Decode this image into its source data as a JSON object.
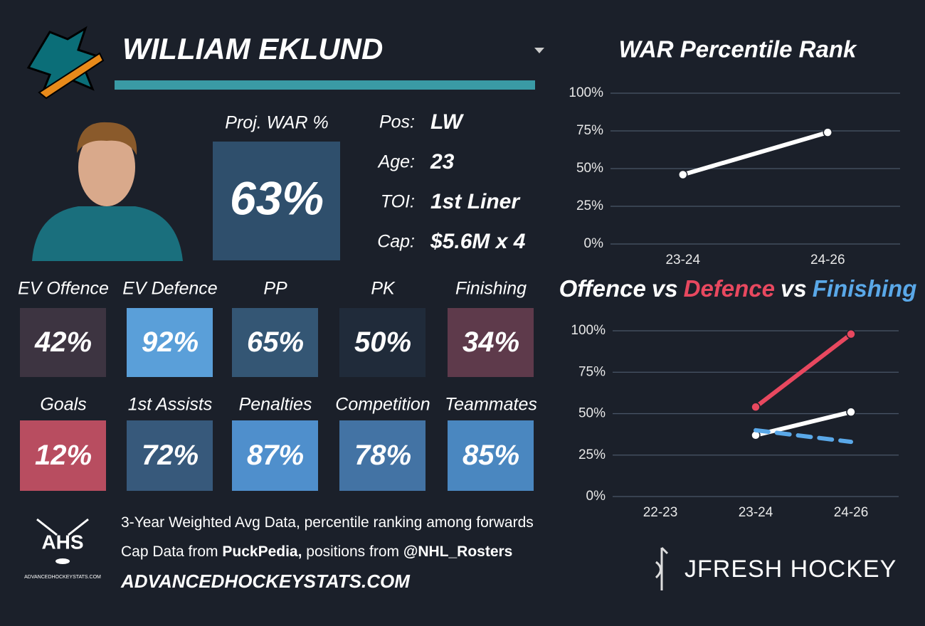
{
  "player": {
    "name": "WILLIAM EKLUND",
    "proj_label": "Proj. WAR %",
    "proj_value": "63%",
    "info": [
      {
        "label": "Pos:",
        "value": "LW"
      },
      {
        "label": "Age:",
        "value": "23"
      },
      {
        "label": "TOI:",
        "value": "1st Liner"
      },
      {
        "label": "Cap:",
        "value": "$5.6M x 4"
      }
    ]
  },
  "tiles": [
    {
      "label": "EV Offence",
      "value": "42%",
      "color": "#3d3441"
    },
    {
      "label": "EV Defence",
      "value": "92%",
      "color": "#5a9fd9"
    },
    {
      "label": "PP",
      "value": "65%",
      "color": "#345674"
    },
    {
      "label": "PK",
      "value": "50%",
      "color": "#202b3a"
    },
    {
      "label": "Finishing",
      "value": "34%",
      "color": "#5e3a4b"
    },
    {
      "label": "Goals",
      "value": "12%",
      "color": "#b84d60"
    },
    {
      "label": "1st Assists",
      "value": "72%",
      "color": "#37597b"
    },
    {
      "label": "Penalties",
      "value": "87%",
      "color": "#4f8fcc"
    },
    {
      "label": "Competition",
      "value": "78%",
      "color": "#4373a4"
    },
    {
      "label": "Teammates",
      "value": "85%",
      "color": "#4a87c0"
    }
  ],
  "footer": {
    "logo_text": "AHS",
    "logo_subtext": "ADVANCEDHOCKEYSTATS.COM",
    "lines": [
      [
        {
          "text": "3-Year Weighted Avg Data, percentile ranking among forwards",
          "bold": false
        }
      ],
      [
        {
          "text": "Cap Data from ",
          "bold": false
        },
        {
          "text": "PuckPedia,",
          "bold": true
        },
        {
          "text": " positions from ",
          "bold": false
        },
        {
          "text": "@NHL_Rosters",
          "bold": true
        }
      ]
    ],
    "website": "ADVANCEDHOCKEYSTATS.COM",
    "brand": "JFRESH HOCKEY"
  },
  "chart_data": [
    {
      "type": "line",
      "title": "WAR Percentile Rank",
      "categories": [
        "23-24",
        "24-26"
      ],
      "series": [
        {
          "color": "#ffffff",
          "values": [
            46,
            74
          ]
        }
      ],
      "ylim": [
        0,
        100
      ],
      "yticks": [
        {
          "value": 0,
          "label": "0%"
        },
        {
          "value": 25,
          "label": "25%"
        },
        {
          "value": 50,
          "label": "50%"
        },
        {
          "value": 75,
          "label": "75%"
        },
        {
          "value": 100,
          "label": "100%"
        }
      ],
      "grid": true
    },
    {
      "type": "line",
      "title_separator": "vs",
      "categories": [
        "22-23",
        "23-24",
        "24-26"
      ],
      "series": [
        {
          "name": "Offence",
          "color": "#ffffff",
          "values": [
            null,
            37,
            51
          ]
        },
        {
          "name": "Defence",
          "color": "#e8485f",
          "values": [
            null,
            54,
            98
          ]
        },
        {
          "name": "Finishing",
          "color": "#5aa8e8",
          "values": [
            null,
            40,
            33
          ],
          "dashed": true
        }
      ],
      "ylim": [
        0,
        100
      ],
      "yticks": [
        {
          "value": 0,
          "label": "0%"
        },
        {
          "value": 25,
          "label": "25%"
        },
        {
          "value": 50,
          "label": "50%"
        },
        {
          "value": 75,
          "label": "75%"
        },
        {
          "value": 100,
          "label": "100%"
        }
      ],
      "grid": true
    }
  ]
}
